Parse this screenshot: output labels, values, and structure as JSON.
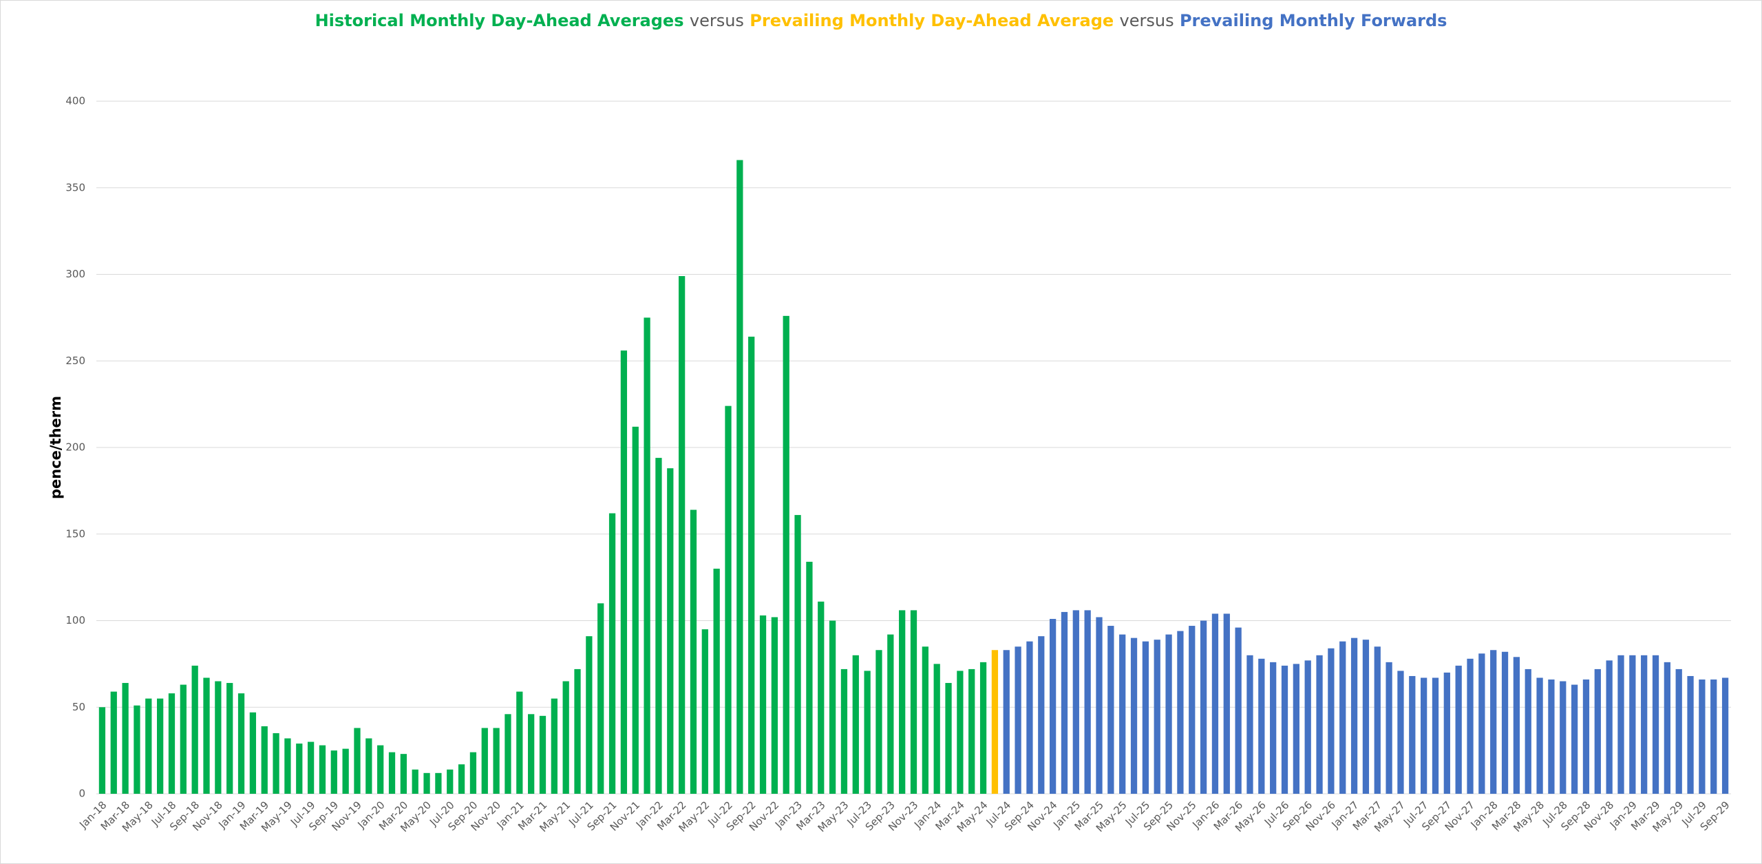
{
  "chart_data": {
    "type": "bar",
    "title_connector": "versus",
    "y_label": "pence/therm",
    "ylim": [
      0,
      400
    ],
    "yticks": [
      0,
      50,
      100,
      150,
      200,
      250,
      300,
      350,
      400
    ],
    "grid": true,
    "categories": [
      "Jan-18",
      null,
      "Mar-18",
      null,
      "May-18",
      null,
      "Jul-18",
      null,
      "Sep-18",
      null,
      "Nov-18",
      null,
      "Jan-19",
      null,
      "Mar-19",
      null,
      "May-19",
      null,
      "Jul-19",
      null,
      "Sep-19",
      null,
      "Nov-19",
      null,
      "Jan-20",
      null,
      "Mar-20",
      null,
      "May-20",
      null,
      "Jul-20",
      null,
      "Sep-20",
      null,
      "Nov-20",
      null,
      "Jan-21",
      null,
      "Mar-21",
      null,
      "May-21",
      null,
      "Jul-21",
      null,
      "Sep-21",
      null,
      "Nov-21",
      null,
      "Jan-22",
      null,
      "Mar-22",
      null,
      "May-22",
      null,
      "Jul-22",
      null,
      "Sep-22",
      null,
      "Nov-22",
      null,
      "Jan-23",
      null,
      "Mar-23",
      null,
      "May-23",
      null,
      "Jul-23",
      null,
      "Sep-23",
      null,
      "Nov-23",
      null,
      "Jan-24",
      null,
      "Mar-24",
      null,
      "May-24",
      null,
      "Jul-24",
      null,
      "Sep-24",
      null,
      "Nov-24",
      null,
      "Jan-25",
      null,
      "Mar-25",
      null,
      "May-25",
      null,
      "Jul-25",
      null,
      "Sep-25",
      null,
      "Nov-25",
      null,
      "Jan-26",
      null,
      "Mar-26",
      null,
      "May-26",
      null,
      "Jul-26",
      null,
      "Sep-26",
      null,
      "Nov-26",
      null,
      "Jan-27",
      null,
      "Mar-27",
      null,
      "May-27",
      null,
      "Jul-27",
      null,
      "Sep-27",
      null,
      "Nov-27",
      null,
      "Jan-28",
      null,
      "Mar-28",
      null,
      "May-28",
      null,
      "Jul-28",
      null,
      "Sep-28",
      null,
      "Nov-28",
      null,
      "Jan-29",
      null,
      "Mar-29",
      null,
      "May-29",
      null,
      "Jul-29",
      null,
      "Sep-29"
    ],
    "series": [
      {
        "name": "Historical Monthly Day-Ahead Averages",
        "color": "#00b050",
        "values": [
          50,
          59,
          64,
          51,
          55,
          55,
          58,
          63,
          74,
          67,
          65,
          64,
          58,
          47,
          39,
          35,
          32,
          29,
          30,
          28,
          25,
          26,
          38,
          32,
          28,
          24,
          23,
          14,
          12,
          12,
          14,
          17,
          24,
          38,
          38,
          46,
          59,
          46,
          45,
          55,
          65,
          72,
          91,
          110,
          162,
          256,
          212,
          275,
          194,
          188,
          299,
          164,
          95,
          130,
          224,
          366,
          264,
          103,
          102,
          276,
          161,
          134,
          111,
          100,
          72,
          80,
          71,
          83,
          92,
          106,
          106,
          85,
          75,
          64,
          71,
          72,
          76,
          null,
          null,
          null,
          null,
          null,
          null,
          null,
          null,
          null,
          null,
          null,
          null,
          null,
          null,
          null,
          null,
          null,
          null,
          null,
          null,
          null,
          null,
          null,
          null,
          null,
          null,
          null,
          null,
          null,
          null,
          null,
          null,
          null,
          null,
          null,
          null,
          null,
          null,
          null,
          null,
          null,
          null,
          null,
          null,
          null,
          null,
          null,
          null,
          null,
          null,
          null,
          null,
          null,
          null,
          null,
          null,
          null,
          null,
          null,
          null,
          null,
          null,
          null,
          null
        ]
      },
      {
        "name": "Prevailing Monthly Day-Ahead Average",
        "color": "#ffc000",
        "values": [
          null,
          null,
          null,
          null,
          null,
          null,
          null,
          null,
          null,
          null,
          null,
          null,
          null,
          null,
          null,
          null,
          null,
          null,
          null,
          null,
          null,
          null,
          null,
          null,
          null,
          null,
          null,
          null,
          null,
          null,
          null,
          null,
          null,
          null,
          null,
          null,
          null,
          null,
          null,
          null,
          null,
          null,
          null,
          null,
          null,
          null,
          null,
          null,
          null,
          null,
          null,
          null,
          null,
          null,
          null,
          null,
          null,
          null,
          null,
          null,
          null,
          null,
          null,
          null,
          null,
          null,
          null,
          null,
          null,
          null,
          null,
          null,
          null,
          null,
          null,
          null,
          null,
          83,
          null,
          null,
          null,
          null,
          null,
          null,
          null,
          null,
          null,
          null,
          null,
          null,
          null,
          null,
          null,
          null,
          null,
          null,
          null,
          null,
          null,
          null,
          null,
          null,
          null,
          null,
          null,
          null,
          null,
          null,
          null,
          null,
          null,
          null,
          null,
          null,
          null,
          null,
          null,
          null,
          null,
          null,
          null,
          null,
          null,
          null,
          null,
          null,
          null,
          null,
          null,
          null,
          null,
          null,
          null,
          null,
          null,
          null,
          null,
          null,
          null,
          null,
          null
        ]
      },
      {
        "name": "Prevailing Monthly Forwards",
        "color": "#4472c4",
        "values": [
          null,
          null,
          null,
          null,
          null,
          null,
          null,
          null,
          null,
          null,
          null,
          null,
          null,
          null,
          null,
          null,
          null,
          null,
          null,
          null,
          null,
          null,
          null,
          null,
          null,
          null,
          null,
          null,
          null,
          null,
          null,
          null,
          null,
          null,
          null,
          null,
          null,
          null,
          null,
          null,
          null,
          null,
          null,
          null,
          null,
          null,
          null,
          null,
          null,
          null,
          null,
          null,
          null,
          null,
          null,
          null,
          null,
          null,
          null,
          null,
          null,
          null,
          null,
          null,
          null,
          null,
          null,
          null,
          null,
          null,
          null,
          null,
          null,
          null,
          null,
          null,
          null,
          null,
          83,
          85,
          88,
          91,
          101,
          105,
          106,
          106,
          102,
          97,
          92,
          90,
          88,
          89,
          92,
          94,
          97,
          100,
          104,
          104,
          96,
          80,
          78,
          76,
          74,
          75,
          77,
          80,
          84,
          88,
          90,
          89,
          85,
          76,
          71,
          68,
          67,
          67,
          70,
          74,
          78,
          81,
          83,
          82,
          79,
          72,
          67,
          66,
          65,
          63,
          66,
          72,
          77,
          80,
          80,
          80,
          80,
          76,
          72,
          68,
          66,
          66,
          67
        ]
      }
    ]
  }
}
